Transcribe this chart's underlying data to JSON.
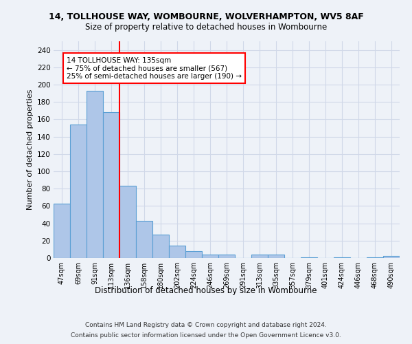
{
  "title1": "14, TOLLHOUSE WAY, WOMBOURNE, WOLVERHAMPTON, WV5 8AF",
  "title2": "Size of property relative to detached houses in Wombourne",
  "xlabel": "Distribution of detached houses by size in Wombourne",
  "ylabel": "Number of detached properties",
  "categories": [
    "47sqm",
    "69sqm",
    "91sqm",
    "113sqm",
    "136sqm",
    "158sqm",
    "180sqm",
    "202sqm",
    "224sqm",
    "246sqm",
    "269sqm",
    "291sqm",
    "313sqm",
    "335sqm",
    "357sqm",
    "379sqm",
    "401sqm",
    "424sqm",
    "446sqm",
    "468sqm",
    "490sqm"
  ],
  "values": [
    63,
    154,
    193,
    168,
    83,
    43,
    27,
    14,
    8,
    4,
    4,
    0,
    4,
    4,
    0,
    1,
    0,
    1,
    0,
    1,
    2
  ],
  "bar_color": "#aec6e8",
  "bar_edge_color": "#5a9fd4",
  "bar_linewidth": 0.8,
  "grid_color": "#d0d8e8",
  "annotation_text": "14 TOLLHOUSE WAY: 135sqm\n← 75% of detached houses are smaller (567)\n25% of semi-detached houses are larger (190) →",
  "annotation_box_color": "white",
  "annotation_box_edge": "red",
  "redline_x": 3.5,
  "ylim": [
    0,
    250
  ],
  "yticks": [
    0,
    20,
    40,
    60,
    80,
    100,
    120,
    140,
    160,
    180,
    200,
    220,
    240
  ],
  "footer1": "Contains HM Land Registry data © Crown copyright and database right 2024.",
  "footer2": "Contains public sector information licensed under the Open Government Licence v3.0.",
  "background_color": "#eef2f8"
}
